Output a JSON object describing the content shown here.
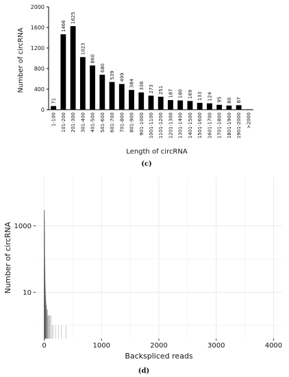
{
  "chart_data": [
    {
      "panel_label": "(c)",
      "type": "bar",
      "xlabel": "Length of circRNA",
      "ylabel": "Number of circRNA",
      "ylim": [
        0,
        2000
      ],
      "yticks": [
        "0",
        "400",
        "800",
        "1200",
        "1600",
        "2000"
      ],
      "categories": [
        "1-100",
        "101-200",
        "201-300",
        "301-400",
        "401-500",
        "501-600",
        "601-700",
        "701-800",
        "801-900",
        "901-1000",
        "1001-1100",
        "1101-1200",
        "1201-1300",
        "1301-1400",
        "1401-1500",
        "1501-1600",
        "1601-1700",
        "1701-1800",
        "1801-1900",
        "1901-2000",
        ">2000"
      ],
      "values": [
        71,
        1466,
        1625,
        1023,
        860,
        680,
        539,
        499,
        384,
        336,
        273,
        251,
        187,
        180,
        169,
        133,
        124,
        95,
        80,
        87,
        8
      ],
      "value_labels": [
        "71",
        "1466",
        "1625",
        "1023",
        "860",
        "680",
        "539",
        "499",
        "384",
        "336",
        "273",
        "251",
        "187",
        "180",
        "169",
        "133",
        "124",
        "95",
        "80",
        "87",
        ""
      ],
      "grid": false,
      "bar_color": "#000000"
    },
    {
      "panel_label": "(d)",
      "type": "bar",
      "xlabel": "Backspliced reads",
      "ylabel": "Number of circRNA",
      "y_scale": "log",
      "yticks": [
        "10",
        "1000"
      ],
      "xticks": [
        "0",
        "1000",
        "2000",
        "3000",
        "4000"
      ],
      "xlim": [
        -150,
        4150
      ],
      "grid": true,
      "background": "#ffffff",
      "grid_color": "#ebebeb",
      "bar_color": "#555555",
      "x": [
        2,
        3,
        4,
        5,
        6,
        7,
        8,
        9,
        10,
        12,
        14,
        16,
        18,
        20,
        24,
        28,
        32,
        36,
        40,
        45,
        50,
        55,
        60,
        70,
        80,
        90,
        100,
        120,
        140,
        160,
        200,
        250,
        300,
        380
      ],
      "values": [
        3000,
        1500,
        700,
        400,
        250,
        150,
        100,
        70,
        50,
        35,
        25,
        18,
        14,
        10,
        8,
        6,
        5,
        4,
        4,
        3,
        3,
        3,
        2,
        2,
        2,
        2,
        2,
        2,
        1,
        1,
        1,
        1,
        1,
        1
      ]
    }
  ]
}
